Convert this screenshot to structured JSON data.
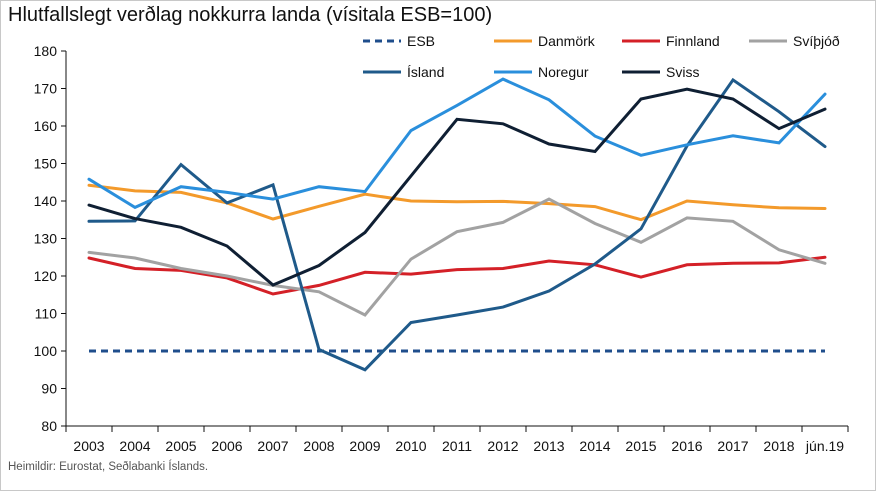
{
  "title": "Hlutfallslegt verðlag nokkurra landa (vísitala ESB=100)",
  "source": "Heimildir: Eurostat, Seðlabanki Íslands.",
  "chart_data": {
    "type": "line",
    "categories": [
      "2003",
      "2004",
      "2005",
      "2006",
      "2007",
      "2008",
      "2009",
      "2010",
      "2011",
      "2012",
      "2013",
      "2014",
      "2015",
      "2016",
      "2017",
      "2018",
      "jún.19"
    ],
    "ylim": [
      80,
      180
    ],
    "yticks": [
      80,
      90,
      100,
      110,
      120,
      130,
      140,
      150,
      160,
      170,
      180
    ],
    "grid": false,
    "legend": "top",
    "series": [
      {
        "name": "ESB",
        "color": "#1f4e8c",
        "dashed": true,
        "values": [
          100,
          100,
          100,
          100,
          100,
          100,
          100,
          100,
          100,
          100,
          100,
          100,
          100,
          100,
          100,
          100,
          100
        ]
      },
      {
        "name": "Danmörk",
        "color": "#f39a2b",
        "dashed": false,
        "values": [
          144.2,
          142.7,
          142.3,
          139.5,
          135.2,
          138.6,
          141.8,
          140.0,
          139.8,
          139.9,
          139.3,
          138.5,
          135.0,
          140.0,
          139.0,
          138.2,
          138.0
        ]
      },
      {
        "name": "Finnland",
        "color": "#d42027",
        "dashed": false,
        "values": [
          124.8,
          122.0,
          121.5,
          119.5,
          115.2,
          117.5,
          121.0,
          120.5,
          121.7,
          122.0,
          124.0,
          123.0,
          119.7,
          123.0,
          123.4,
          123.5,
          125.0
        ]
      },
      {
        "name": "Svíþjóð",
        "color": "#a2a2a2",
        "dashed": false,
        "values": [
          126.3,
          124.8,
          122.0,
          120.0,
          117.5,
          115.8,
          109.6,
          124.5,
          131.8,
          134.3,
          140.5,
          134.0,
          129.0,
          135.5,
          134.6,
          127.0,
          123.4
        ]
      },
      {
        "name": "Ísland",
        "color": "#1f5a8a",
        "dashed": false,
        "values": [
          134.6,
          134.7,
          149.7,
          139.5,
          144.3,
          100.4,
          95.0,
          107.6,
          109.6,
          111.7,
          116.0,
          123.2,
          132.6,
          154.7,
          172.3,
          163.8,
          154.5
        ]
      },
      {
        "name": "Noregur",
        "color": "#2a8fdc",
        "dashed": false,
        "values": [
          145.8,
          138.3,
          143.8,
          142.3,
          140.5,
          143.8,
          142.5,
          158.8,
          165.5,
          172.5,
          167.0,
          157.3,
          152.2,
          155.0,
          157.4,
          155.5,
          168.5
        ]
      },
      {
        "name": "Sviss",
        "color": "#0f1f33",
        "dashed": false,
        "values": [
          138.9,
          135.3,
          133.0,
          128.0,
          117.6,
          122.8,
          131.6,
          146.7,
          161.8,
          160.6,
          155.2,
          153.2,
          167.2,
          169.8,
          167.2,
          159.3,
          164.5
        ]
      }
    ]
  }
}
